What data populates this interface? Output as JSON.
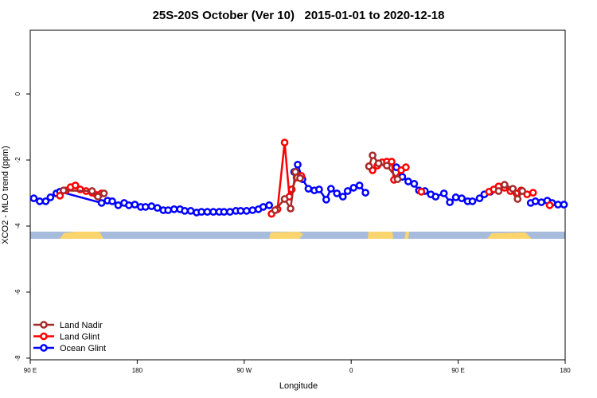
{
  "chart_data": {
    "type": "line",
    "title": "25S-20S October (Ver 10)   2015-01-01 to 2020-12-18",
    "x_label": "Longitude",
    "y_label": "XCO2 - MLO trend (ppm)",
    "xlim": [
      90,
      540
    ],
    "xticks": [
      {
        "value": 90,
        "label": "90 E"
      },
      {
        "value": 180,
        "label": "180"
      },
      {
        "value": 270,
        "label": "90 W"
      },
      {
        "value": 360,
        "label": "0"
      },
      {
        "value": 450,
        "label": "90 E"
      },
      {
        "value": 540,
        "label": "180"
      }
    ],
    "ylim": [
      -8.05,
      1.93
    ],
    "yticks": [
      0,
      -2,
      -4,
      -6,
      -8
    ],
    "legend": "bottom-left",
    "series": [
      {
        "name": "Ocean Glint",
        "color": "#0000ff",
        "x": [
          93,
          98,
          103,
          107,
          112,
          115,
          150,
          155,
          159,
          164,
          169,
          173,
          178,
          183,
          187,
          192,
          197,
          202,
          206,
          211,
          216,
          220,
          225,
          230,
          234,
          239,
          244,
          249,
          253,
          258,
          263,
          267,
          272,
          277,
          282,
          286,
          291,
          null,
          312,
          315,
          319,
          324,
          329,
          333,
          339,
          343,
          348,
          353,
          357,
          362,
          367,
          372,
          null,
          398,
          403,
          408,
          413,
          417,
          422,
          427,
          431,
          438,
          443,
          448,
          453,
          458,
          462,
          468,
          472,
          477,
          null,
          511,
          515,
          520,
          525,
          529,
          534,
          539
        ],
        "values": [
          -3.16,
          -3.25,
          -3.25,
          -3.13,
          -3.01,
          -2.96,
          -3.3,
          -3.23,
          -3.25,
          -3.37,
          -3.3,
          -3.37,
          -3.35,
          -3.42,
          -3.42,
          -3.4,
          -3.45,
          -3.52,
          -3.52,
          -3.49,
          -3.49,
          -3.54,
          -3.54,
          -3.59,
          -3.57,
          -3.57,
          -3.57,
          -3.57,
          -3.57,
          -3.57,
          -3.54,
          -3.54,
          -3.54,
          -3.52,
          -3.49,
          -3.42,
          -3.37,
          null,
          -2.36,
          -2.14,
          -2.58,
          -2.87,
          -2.92,
          -2.89,
          -3.2,
          -2.87,
          -3.01,
          -3.11,
          -2.94,
          -2.84,
          -2.77,
          -2.99,
          null,
          -2.22,
          -2.51,
          -2.65,
          -2.72,
          -2.92,
          -2.94,
          -3.04,
          -3.11,
          -3.01,
          -3.28,
          -3.13,
          -3.16,
          -3.25,
          -3.25,
          -3.16,
          -3.04,
          -2.96,
          null,
          -3.3,
          -3.25,
          -3.28,
          -3.23,
          -3.3,
          -3.35,
          -3.35
        ]
      },
      {
        "name": "Land Glint",
        "color": "#ff0000",
        "x": [
          115,
          120,
          124,
          128,
          132,
          137,
          142,
          146,
          150,
          null,
          293,
          298,
          304,
          308,
          310,
          314,
          318,
          null,
          375,
          378,
          382,
          386,
          390,
          394,
          396,
          402,
          406,
          null,
          419,
          null,
          476,
          480,
          484,
          489,
          494,
          499,
          503,
          508,
          513,
          null,
          527
        ],
        "values": [
          -3.08,
          -2.92,
          -2.82,
          -2.77,
          -2.89,
          -2.94,
          -2.99,
          -3.06,
          -3.01,
          null,
          -3.63,
          -3.49,
          -1.47,
          -3.11,
          -2.89,
          -2.53,
          -2.48,
          null,
          -2.19,
          -2.31,
          -2.17,
          -2.07,
          -2.05,
          -2.05,
          -2.6,
          -2.31,
          -2.22,
          null,
          -2.96,
          null,
          -2.96,
          -2.89,
          -2.8,
          -2.84,
          -2.94,
          -3.01,
          -2.92,
          -3.04,
          -2.99,
          null,
          -3.37
        ]
      },
      {
        "name": "Land Nadir",
        "color": "#a52a2a",
        "x": [
          118,
          142,
          147,
          152,
          null,
          296,
          304,
          309,
          313,
          317,
          null,
          375,
          378,
          383,
          390,
          399,
          null,
          484,
          489,
          496,
          500,
          504
        ],
        "values": [
          -2.92,
          -2.94,
          -3.11,
          -3.01,
          null,
          -3.52,
          -3.18,
          -3.47,
          -2.36,
          -2.55,
          null,
          -2.19,
          -1.86,
          -2.1,
          -2.17,
          -2.58,
          null,
          -2.94,
          -2.75,
          -2.87,
          -3.18,
          -2.94
        ]
      }
    ]
  }
}
